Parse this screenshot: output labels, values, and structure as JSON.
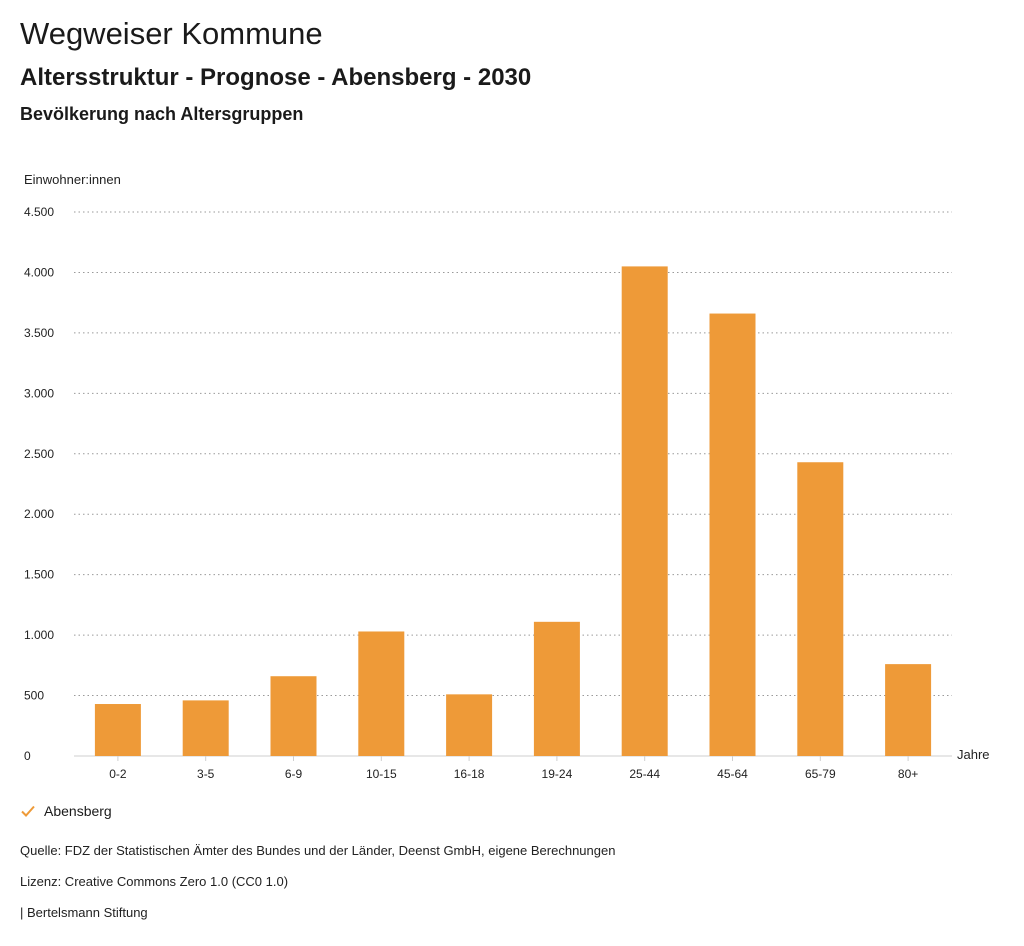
{
  "header": {
    "title": "Wegweiser Kommune",
    "subtitle": "Altersstruktur - Prognose - Abensberg - 2030",
    "subsubtitle": "Bevölkerung nach Altersgruppen"
  },
  "chart_data": {
    "type": "bar",
    "ylabel": "Einwohner:innen",
    "xlabel": "Jahre",
    "ylim": [
      0,
      4500
    ],
    "yticks": [
      0,
      500,
      1000,
      1500,
      2000,
      2500,
      3000,
      3500,
      4000,
      4500
    ],
    "ytick_labels": [
      "0",
      "500",
      "1.000",
      "1.500",
      "2.000",
      "2.500",
      "3.000",
      "3.500",
      "4.000",
      "4.500"
    ],
    "grid": true,
    "categories": [
      "0-2",
      "3-5",
      "6-9",
      "10-15",
      "16-18",
      "19-24",
      "25-44",
      "45-64",
      "65-79",
      "80+"
    ],
    "series": [
      {
        "name": "Abensberg",
        "color": "#ee9a38",
        "values": [
          430,
          460,
          660,
          1030,
          510,
          1110,
          4050,
          3660,
          2430,
          760
        ]
      }
    ],
    "legend_position": "bottom-left"
  },
  "legend": {
    "items": [
      {
        "label": "Abensberg",
        "icon": "checkmark-icon",
        "color": "#ee9a38"
      }
    ]
  },
  "footer": {
    "source": "Quelle: FDZ der Statistischen Ämter des Bundes und der Länder, Deenst GmbH, eigene Berechnungen",
    "license": "Lizenz: Creative Commons Zero 1.0 (CC0 1.0)",
    "publisher": "| Bertelsmann Stiftung"
  }
}
